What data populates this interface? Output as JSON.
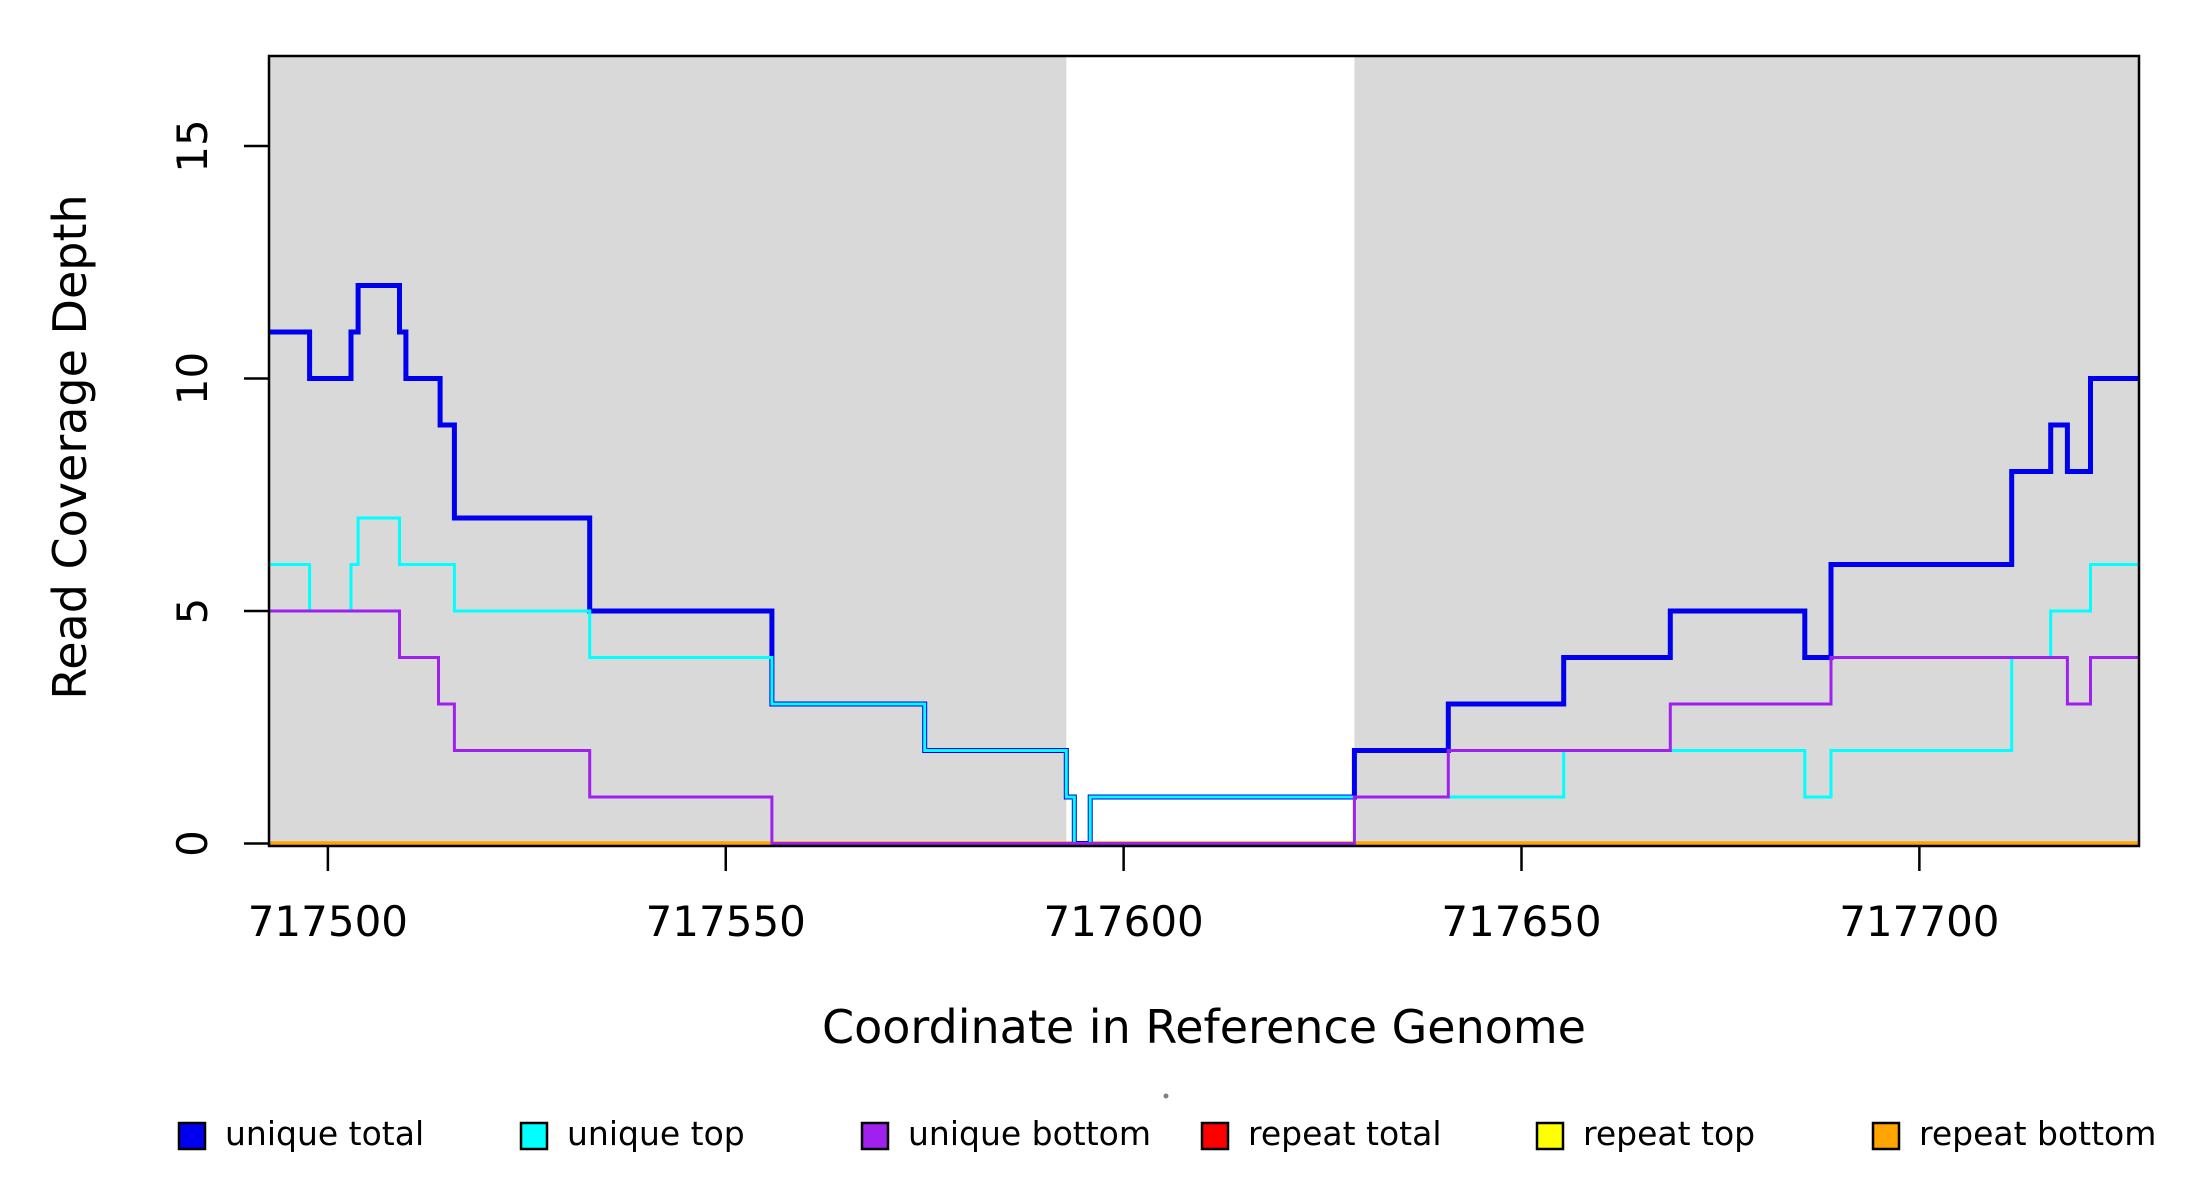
{
  "figure": {
    "xlabel": "Coordinate in Reference Genome",
    "ylabel": "Read Coverage Depth"
  },
  "chart_data": {
    "type": "line",
    "step": true,
    "title": "",
    "xlabel": "Coordinate in Reference Genome",
    "ylabel": "Read Coverage Depth",
    "xlim": [
      717492.6,
      717727.6
    ],
    "ylim": [
      0,
      16.9
    ],
    "x_ticks": [
      717500,
      717550,
      717600,
      717650,
      717700
    ],
    "y_ticks": [
      0,
      5,
      10,
      15
    ],
    "grid": false,
    "background_color": "#ffffff",
    "shade_color": "#D9D9D9",
    "shaded_regions": [
      {
        "x0": 717492.6,
        "x1": 717592.8
      },
      {
        "x0": 717629.0,
        "x1": 717727.6
      }
    ],
    "legend_position": "bottom",
    "series": [
      {
        "name": "repeat total",
        "color": "#FF0000",
        "width": 3,
        "steps": [
          [
            717492.6,
            0
          ]
        ]
      },
      {
        "name": "repeat top",
        "color": "#FFFF00",
        "width": 3.5,
        "steps": [
          [
            717492.6,
            0
          ]
        ]
      },
      {
        "name": "repeat bottom",
        "color": "#FFA500",
        "width": 4.5,
        "steps": [
          [
            717492.6,
            0
          ]
        ]
      },
      {
        "name": "unique total",
        "color": "#0000EE",
        "width": 5,
        "steps": [
          [
            717492.6,
            11
          ],
          [
            717497.7,
            10
          ],
          [
            717502.9,
            11
          ],
          [
            717503.8,
            12
          ],
          [
            717509.0,
            11
          ],
          [
            717509.8,
            10
          ],
          [
            717514.1,
            9
          ],
          [
            717515.9,
            7
          ],
          [
            717532.9,
            5
          ],
          [
            717555.8,
            3
          ],
          [
            717575.0,
            2
          ],
          [
            717592.8,
            1
          ],
          [
            717593.8,
            0
          ],
          [
            717595.8,
            1
          ],
          [
            717629.0,
            2
          ],
          [
            717640.8,
            3
          ],
          [
            717655.3,
            4
          ],
          [
            717668.7,
            5
          ],
          [
            717685.6,
            4
          ],
          [
            717688.9,
            6
          ],
          [
            717711.6,
            8
          ],
          [
            717716.5,
            9
          ],
          [
            717718.6,
            8
          ],
          [
            717721.5,
            10
          ]
        ]
      },
      {
        "name": "unique top",
        "color": "#00FFFF",
        "width": 3,
        "steps": [
          [
            717492.6,
            6
          ],
          [
            717497.7,
            5
          ],
          [
            717502.9,
            6
          ],
          [
            717503.8,
            7
          ],
          [
            717509.0,
            6
          ],
          [
            717515.9,
            5
          ],
          [
            717532.9,
            4
          ],
          [
            717555.8,
            3
          ],
          [
            717575.0,
            2
          ],
          [
            717592.8,
            1
          ],
          [
            717593.8,
            0
          ],
          [
            717595.8,
            1
          ],
          [
            717655.3,
            2
          ],
          [
            717685.6,
            1
          ],
          [
            717688.9,
            2
          ],
          [
            717711.6,
            4
          ],
          [
            717716.5,
            5
          ],
          [
            717721.5,
            6
          ]
        ]
      },
      {
        "name": "unique bottom",
        "color": "#A020F0",
        "width": 3,
        "steps": [
          [
            717492.6,
            5
          ],
          [
            717509.0,
            4
          ],
          [
            717513.9,
            3
          ],
          [
            717515.9,
            2
          ],
          [
            717532.9,
            1
          ],
          [
            717555.8,
            0
          ],
          [
            717629.0,
            1
          ],
          [
            717640.8,
            2
          ],
          [
            717668.7,
            3
          ],
          [
            717688.9,
            4
          ],
          [
            717718.6,
            3
          ],
          [
            717721.5,
            4
          ]
        ]
      }
    ],
    "legend": {
      "items": [
        {
          "label": "unique total",
          "color": "#0000EE"
        },
        {
          "label": "unique top",
          "color": "#00FFFF"
        },
        {
          "label": "unique bottom",
          "color": "#A020F0"
        },
        {
          "label": "repeat total",
          "color": "#FF0000"
        },
        {
          "label": "repeat top",
          "color": "#FFFF00"
        },
        {
          "label": "repeat bottom",
          "color": "#FFA500"
        }
      ]
    },
    "artifact_dot": {
      "x": 1166,
      "y": 1096
    }
  }
}
